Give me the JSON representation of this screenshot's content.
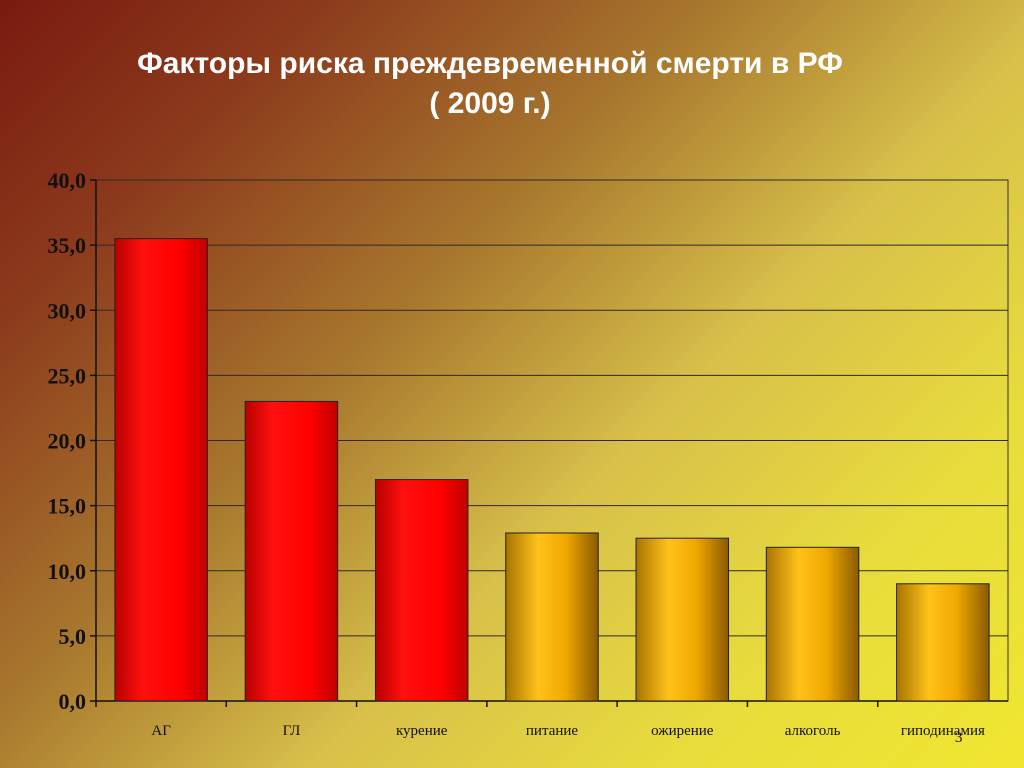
{
  "title_line1": "Факторы риска преждевременной смерти в РФ",
  "title_line2": "( 2009 г.)",
  "page_number": "3",
  "chart_data": {
    "type": "bar",
    "title": "Факторы риска преждевременной смерти в РФ ( 2009 г.)",
    "xlabel": "",
    "ylabel": "",
    "ylim": [
      0,
      40
    ],
    "yticks": [
      "0,0",
      "5,0",
      "10,0",
      "15,0",
      "20,0",
      "25,0",
      "30,0",
      "35,0",
      "40,0"
    ],
    "grid": true,
    "categories": [
      "АГ",
      "ГЛ",
      "курение",
      "питание",
      "ожирение",
      "алкоголь",
      "гиподинамия"
    ],
    "values": [
      35.5,
      23.0,
      17.0,
      12.9,
      12.5,
      11.8,
      9.0
    ],
    "colors": [
      "#ff0000",
      "#ff0000",
      "#ff0000",
      "#e8a800",
      "#e8a800",
      "#e8a800",
      "#e8a800"
    ]
  }
}
